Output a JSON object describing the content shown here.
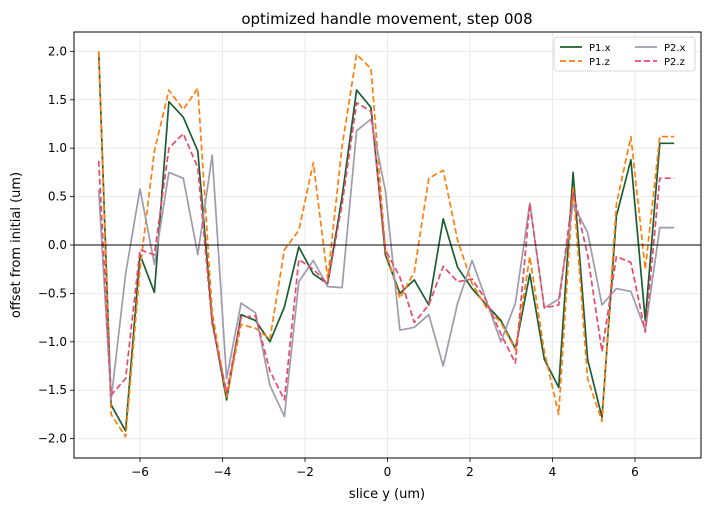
{
  "chart_data": {
    "type": "line",
    "title": "optimized handle movement, step 008",
    "xlabel": "slice y (um)",
    "ylabel": "offset from initial (um)",
    "xlim": [
      -7.6,
      7.6
    ],
    "ylim": [
      -2.2,
      2.2
    ],
    "xticks": [
      -6,
      -4,
      -2,
      0,
      2,
      4,
      6
    ],
    "xtick_labels": [
      "−6",
      "−4",
      "−2",
      "0",
      "2",
      "4",
      "6"
    ],
    "yticks": [
      -2.0,
      -1.5,
      -1.0,
      -0.5,
      0.0,
      0.5,
      1.0,
      1.5,
      2.0
    ],
    "ytick_labels": [
      "−2.0",
      "−1.5",
      "−1.0",
      "−0.5",
      "0.0",
      "0.5",
      "1.0",
      "1.5",
      "2.0"
    ],
    "grid": true,
    "zero_line": true,
    "legend_position": "top-right",
    "x": [
      -7.0,
      -6.7,
      -6.35,
      -6.0,
      -5.65,
      -5.3,
      -4.95,
      -4.6,
      -4.25,
      -3.9,
      -3.55,
      -3.2,
      -2.85,
      -2.5,
      -2.15,
      -1.8,
      -1.45,
      -1.1,
      -0.75,
      -0.4,
      -0.05,
      0.3,
      0.65,
      1.0,
      1.35,
      1.7,
      2.05,
      2.4,
      2.75,
      3.1,
      3.45,
      3.8,
      4.15,
      4.5,
      4.85,
      5.2,
      5.55,
      5.9,
      6.25,
      6.6,
      6.95
    ],
    "series": [
      {
        "name": "P1.x",
        "color": "#1c5e31",
        "dash": "solid",
        "values": [
          2.0,
          -1.65,
          -1.92,
          -0.1,
          -0.49,
          1.48,
          1.32,
          0.97,
          -0.78,
          -1.6,
          -0.72,
          -0.78,
          -1.0,
          -0.64,
          -0.02,
          -0.3,
          -0.4,
          0.5,
          1.6,
          1.42,
          -0.1,
          -0.5,
          -0.36,
          -0.62,
          0.27,
          -0.23,
          -0.45,
          -0.62,
          -0.78,
          -1.07,
          -0.3,
          -1.18,
          -1.47,
          0.75,
          -1.18,
          -1.78,
          0.3,
          0.88,
          -0.78,
          1.05,
          1.05
        ]
      },
      {
        "name": "P1.z",
        "color": "#ff7f0e",
        "dash": "dashed",
        "values": [
          2.0,
          -1.75,
          -1.98,
          -0.25,
          0.97,
          1.6,
          1.4,
          1.62,
          -0.7,
          -1.57,
          -0.82,
          -0.86,
          -0.97,
          -0.05,
          0.15,
          0.85,
          -0.35,
          1.02,
          1.97,
          1.82,
          -0.05,
          -0.55,
          -0.28,
          0.69,
          0.77,
          0.05,
          -0.4,
          -0.65,
          -0.8,
          -1.08,
          -0.12,
          -1.1,
          -1.75,
          0.6,
          -1.38,
          -1.82,
          0.42,
          1.12,
          -0.25,
          1.12,
          1.12
        ]
      },
      {
        "name": "P2.x",
        "color": "#a09aad",
        "dash": "solid",
        "values": [
          0.57,
          -1.6,
          -0.3,
          0.58,
          -0.2,
          0.75,
          0.69,
          -0.1,
          0.93,
          -1.38,
          -0.6,
          -0.7,
          -1.45,
          -1.77,
          -0.38,
          -0.16,
          -0.43,
          -0.44,
          1.18,
          1.3,
          0.56,
          -0.88,
          -0.85,
          -0.72,
          -1.25,
          -0.6,
          -0.16,
          -0.58,
          -1.0,
          -0.6,
          0.43,
          -0.65,
          -0.56,
          0.42,
          0.13,
          -0.62,
          -0.45,
          -0.48,
          -0.88,
          0.18,
          0.18
        ]
      },
      {
        "name": "P2.z",
        "color": "#e84b6a",
        "dash": "dashed",
        "values": [
          0.87,
          -1.55,
          -1.38,
          -0.05,
          -0.1,
          1.0,
          1.15,
          0.8,
          -0.82,
          -1.52,
          -0.75,
          -0.73,
          -1.3,
          -1.6,
          -0.15,
          -0.25,
          -0.4,
          0.42,
          1.47,
          1.38,
          -0.05,
          -0.33,
          -0.8,
          -0.62,
          -0.22,
          -0.38,
          -0.35,
          -0.58,
          -0.92,
          -1.22,
          0.43,
          -0.65,
          -0.62,
          0.55,
          -0.1,
          -1.1,
          -0.12,
          -0.18,
          -0.9,
          0.69,
          0.69
        ]
      }
    ]
  }
}
